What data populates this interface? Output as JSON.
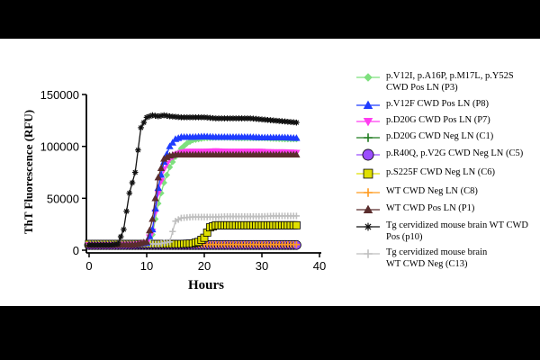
{
  "chart_data": {
    "type": "line",
    "title": "",
    "xlabel": "Hours",
    "ylabel": "ThT Fluorescence (RFU)",
    "xlim": [
      0,
      40
    ],
    "ylim": [
      0,
      150000
    ],
    "xticks": [
      "0",
      "10",
      "20",
      "30",
      "40"
    ],
    "yticks": [
      "0",
      "50000",
      "100000",
      "150000"
    ],
    "grid": false,
    "legend_position": "right",
    "series": [
      {
        "name": "p.V12I, p.A16P, p.M17L, p.Y52S\nCWD Pos LN (P3)",
        "color": "#7ee07e",
        "marker": "diamond",
        "x": [
          0,
          4,
          8,
          10,
          11,
          12,
          13,
          14,
          15,
          16,
          17,
          18,
          20,
          22,
          24,
          26,
          28,
          30,
          32,
          34,
          36
        ],
        "y": [
          5000,
          5000,
          5500,
          7000,
          15000,
          45000,
          65000,
          80000,
          90000,
          98000,
          103000,
          106000,
          108000,
          108500,
          108500,
          108000,
          108000,
          108000,
          107500,
          107000,
          107000
        ]
      },
      {
        "name": "p.V12F CWD Pos LN (P8)",
        "color": "#1f3cff",
        "marker": "triangle",
        "x": [
          0,
          4,
          8,
          10,
          11,
          12,
          13,
          14,
          15,
          16,
          17,
          18,
          20,
          22,
          24,
          26,
          28,
          30,
          32,
          34,
          36
        ],
        "y": [
          5000,
          5000,
          5500,
          7000,
          20000,
          60000,
          85000,
          100000,
          107000,
          109000,
          109000,
          109000,
          109500,
          109000,
          109000,
          109000,
          109000,
          108500,
          108500,
          108500,
          108000
        ]
      },
      {
        "name": "p.D20G CWD Pos LN (P7)",
        "color": "#ff3cf0",
        "marker": "triangle-down",
        "x": [
          0,
          4,
          8,
          10,
          11,
          12,
          13,
          14,
          15,
          16,
          17,
          18,
          20,
          22,
          24,
          26,
          28,
          30,
          32,
          34,
          36
        ],
        "y": [
          5000,
          5000,
          5500,
          7000,
          18000,
          55000,
          78000,
          88000,
          92000,
          94000,
          95000,
          95000,
          95000,
          95500,
          95000,
          95000,
          95000,
          95000,
          94500,
          94500,
          94000
        ]
      },
      {
        "name": "p.D20G CWD Neg LN (C1)",
        "color": "#1f7a1f",
        "marker": "plus",
        "x": [
          0,
          4,
          8,
          10,
          12,
          14,
          16,
          18,
          20,
          22,
          24,
          26,
          28,
          30,
          32,
          34,
          36
        ],
        "y": [
          5000,
          5000,
          5000,
          5000,
          5000,
          5000,
          5000,
          5000,
          5000,
          5000,
          5000,
          5000,
          5000,
          5000,
          5000,
          5000,
          5000
        ]
      },
      {
        "name": "p.R40Q, p.V2G CWD Neg LN (C5)",
        "color": "#9b4dff",
        "marker": "circle",
        "x": [
          0,
          4,
          8,
          10,
          12,
          14,
          16,
          18,
          20,
          22,
          24,
          26,
          28,
          30,
          32,
          34,
          36
        ],
        "y": [
          5000,
          5000,
          5000,
          5000,
          5000,
          5000,
          5000,
          5000,
          5000,
          5000,
          5000,
          5000,
          5000,
          5000,
          5000,
          5000,
          5000
        ]
      },
      {
        "name": "p.S225F CWD Neg LN (C6)",
        "color": "#e0e000",
        "marker": "square",
        "x": [
          0,
          4,
          8,
          10,
          12,
          14,
          16,
          18,
          19,
          20,
          21,
          22,
          24,
          26,
          28,
          30,
          32,
          34,
          36
        ],
        "y": [
          6000,
          6000,
          6000,
          6000,
          6000,
          6000,
          6000,
          6500,
          8000,
          12000,
          22000,
          24000,
          24000,
          24000,
          24000,
          24000,
          24000,
          24000,
          24000
        ]
      },
      {
        "name": "WT CWD Neg LN (C8)",
        "color": "#ff9a1f",
        "marker": "plus",
        "x": [
          0,
          4,
          8,
          10,
          12,
          14,
          16,
          18,
          20,
          22,
          24,
          26,
          28,
          30,
          32,
          34,
          36
        ],
        "y": [
          5500,
          5500,
          5500,
          5500,
          5500,
          5500,
          5500,
          5500,
          5500,
          5500,
          5500,
          5500,
          5500,
          5500,
          5500,
          5500,
          5500
        ]
      },
      {
        "name": "WT CWD Pos LN (P1)",
        "color": "#5a2d2d",
        "marker": "triangle",
        "x": [
          0,
          4,
          8,
          10,
          11,
          12,
          13,
          14,
          15,
          16,
          17,
          18,
          20,
          22,
          24,
          26,
          28,
          30,
          32,
          34,
          36
        ],
        "y": [
          5000,
          5000,
          5500,
          8000,
          30000,
          70000,
          88000,
          91000,
          92000,
          92000,
          92000,
          92000,
          92000,
          92000,
          92000,
          92000,
          92000,
          92000,
          92000,
          92000,
          92000
        ]
      },
      {
        "name": "Tg cervidized mouse brain WT CWD\nPos (p10)",
        "color": "#111111",
        "marker": "star",
        "x": [
          0,
          2,
          4,
          5,
          6,
          7,
          8,
          9,
          10,
          11,
          12,
          13,
          14,
          16,
          18,
          20,
          22,
          24,
          26,
          28,
          30,
          32,
          34,
          36
        ],
        "y": [
          5000,
          5000,
          5000,
          6000,
          20000,
          55000,
          75000,
          118000,
          128000,
          130000,
          129000,
          130000,
          129000,
          128000,
          128000,
          128000,
          127000,
          127000,
          127000,
          127000,
          126000,
          125000,
          124000,
          123000
        ]
      },
      {
        "name": "Tg cervidized mouse brain\nWT CWD Neg (C13)",
        "color": "#bfbfbf",
        "marker": "plus",
        "x": [
          0,
          4,
          8,
          10,
          12,
          14,
          15,
          16,
          18,
          20,
          22,
          24,
          26,
          28,
          30,
          32,
          34,
          36
        ],
        "y": [
          6000,
          6000,
          6000,
          6000,
          6000,
          8000,
          28000,
          31000,
          32000,
          32000,
          32000,
          32500,
          32500,
          32500,
          32500,
          33000,
          33000,
          33000
        ]
      }
    ]
  }
}
